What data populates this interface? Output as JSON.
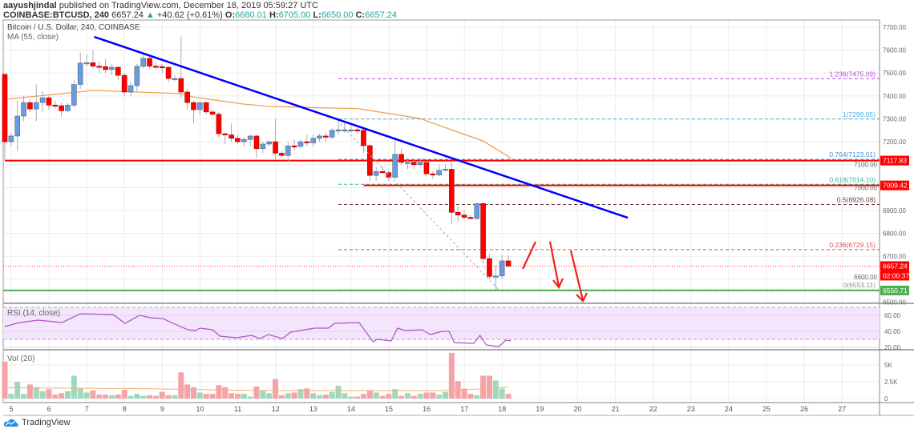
{
  "header": {
    "author": "aayushjindal",
    "published": "published on TradingView.com, December 18, 2019 05:59:27 UTC",
    "symbol": "COINBASE:BTCUSD, 240",
    "last": "6657.24",
    "change": "+40.62 (+0.61%)",
    "o_label": "O:",
    "o": "6680.01",
    "h_label": "H:",
    "h": "6705.00",
    "l_label": "L:",
    "l": "6650.00",
    "c_label": "C:",
    "c": "6657.24"
  },
  "footer": {
    "brand": "TradingView"
  },
  "colors": {
    "up": "#6a9be0",
    "down": "#ff0000",
    "ma": "#f0a050",
    "trend": "#0000ff",
    "rsi": "#b050c8",
    "support": "#4caf50"
  },
  "chart_data": {
    "type": "candlestick",
    "title": "Bitcoin / U.S. Dollar, 240, COINBASE",
    "ma_label": "MA (55, close)",
    "price_ticks": [
      6500,
      6600,
      6700,
      6800,
      6900,
      7000,
      7100,
      7200,
      7300,
      7400,
      7500,
      7600,
      7700
    ],
    "price_tick_labels": [
      "6500.00",
      "6600.00",
      "6700.00",
      "6800.00",
      "6900.00",
      "7000.00",
      "7100.00",
      "7200.00",
      "7300.00",
      "7400.00",
      "7500.00",
      "7600.00",
      "7700.00"
    ],
    "ylim": [
      6480,
      7730
    ],
    "x_labels": [
      "5",
      "6",
      "7",
      "8",
      "9",
      "10",
      "11",
      "12",
      "13",
      "14",
      "15",
      "16",
      "17",
      "18",
      "19",
      "20",
      "21",
      "22",
      "23",
      "24",
      "25",
      "26",
      "27"
    ],
    "ohlc": [
      [
        7494,
        7500,
        7120,
        7200
      ],
      [
        7200,
        7240,
        7180,
        7225
      ],
      [
        7225,
        7380,
        7160,
        7312
      ],
      [
        7312,
        7400,
        7290,
        7371
      ],
      [
        7371,
        7385,
        7330,
        7343
      ],
      [
        7343,
        7450,
        7290,
        7371
      ],
      [
        7371,
        7420,
        7330,
        7392
      ],
      [
        7392,
        7400,
        7340,
        7360
      ],
      [
        7360,
        7380,
        7345,
        7357
      ],
      [
        7357,
        7370,
        7310,
        7335
      ],
      [
        7335,
        7370,
        7330,
        7360
      ],
      [
        7360,
        7470,
        7350,
        7450
      ],
      [
        7450,
        7590,
        7430,
        7543
      ],
      [
        7543,
        7580,
        7530,
        7545
      ],
      [
        7545,
        7600,
        7520,
        7530
      ],
      [
        7530,
        7550,
        7500,
        7528
      ],
      [
        7528,
        7560,
        7500,
        7515
      ],
      [
        7515,
        7540,
        7490,
        7525
      ],
      [
        7525,
        7530,
        7470,
        7490
      ],
      [
        7490,
        7500,
        7400,
        7417
      ],
      [
        7417,
        7460,
        7400,
        7445
      ],
      [
        7445,
        7540,
        7420,
        7529
      ],
      [
        7529,
        7580,
        7520,
        7564
      ],
      [
        7564,
        7570,
        7520,
        7530
      ],
      [
        7530,
        7545,
        7515,
        7528
      ],
      [
        7528,
        7540,
        7500,
        7525
      ],
      [
        7525,
        7530,
        7460,
        7476
      ],
      [
        7476,
        7490,
        7465,
        7476
      ],
      [
        7476,
        7660,
        7390,
        7417
      ],
      [
        7417,
        7430,
        7340,
        7371
      ],
      [
        7371,
        7380,
        7280,
        7340
      ],
      [
        7340,
        7370,
        7320,
        7371
      ],
      [
        7371,
        7375,
        7320,
        7330
      ],
      [
        7330,
        7340,
        7310,
        7320
      ],
      [
        7320,
        7330,
        7220,
        7235
      ],
      [
        7235,
        7240,
        7190,
        7230
      ],
      [
        7230,
        7280,
        7200,
        7215
      ],
      [
        7215,
        7230,
        7190,
        7200
      ],
      [
        7200,
        7220,
        7180,
        7210
      ],
      [
        7210,
        7230,
        7180,
        7225
      ],
      [
        7225,
        7230,
        7130,
        7170
      ],
      [
        7170,
        7200,
        7150,
        7190
      ],
      [
        7190,
        7205,
        7180,
        7200
      ],
      [
        7200,
        7300,
        7120,
        7150
      ],
      [
        7150,
        7160,
        7130,
        7140
      ],
      [
        7140,
        7200,
        7110,
        7182
      ],
      [
        7182,
        7210,
        7160,
        7180
      ],
      [
        7180,
        7210,
        7170,
        7200
      ],
      [
        7200,
        7230,
        7180,
        7195
      ],
      [
        7195,
        7230,
        7180,
        7215
      ],
      [
        7215,
        7235,
        7200,
        7225
      ],
      [
        7225,
        7240,
        7200,
        7220
      ],
      [
        7220,
        7260,
        7210,
        7250
      ],
      [
        7250,
        7300,
        7230,
        7252
      ],
      [
        7252,
        7290,
        7240,
        7252
      ],
      [
        7252,
        7270,
        7240,
        7252
      ],
      [
        7252,
        7260,
        7240,
        7250
      ],
      [
        7250,
        7260,
        7150,
        7183
      ],
      [
        7183,
        7190,
        7030,
        7053
      ],
      [
        7053,
        7090,
        7030,
        7070
      ],
      [
        7070,
        7090,
        7060,
        7065
      ],
      [
        7065,
        7075,
        7030,
        7045
      ],
      [
        7045,
        7220,
        7040,
        7145
      ],
      [
        7145,
        7170,
        7100,
        7110
      ],
      [
        7110,
        7130,
        7080,
        7110
      ],
      [
        7110,
        7120,
        7080,
        7100
      ],
      [
        7100,
        7130,
        7090,
        7110
      ],
      [
        7110,
        7115,
        7050,
        7060
      ],
      [
        7060,
        7070,
        7040,
        7055
      ],
      [
        7055,
        7100,
        7050,
        7075
      ],
      [
        7075,
        7100,
        7070,
        7080
      ],
      [
        7080,
        7110,
        6840,
        6892
      ],
      [
        6892,
        6920,
        6850,
        6880
      ],
      [
        6880,
        6900,
        6860,
        6870
      ],
      [
        6870,
        6880,
        6860,
        6865
      ],
      [
        6865,
        6930,
        6860,
        6930
      ],
      [
        6930,
        6935,
        6670,
        6690
      ],
      [
        6690,
        6710,
        6600,
        6612
      ],
      [
        6612,
        6660,
        6553,
        6614
      ],
      [
        6614,
        6705,
        6600,
        6680
      ],
      [
        6680,
        6705,
        6650,
        6657.24
      ]
    ],
    "ma55": [
      [
        0,
        7385
      ],
      [
        14,
        7424
      ],
      [
        28,
        7410
      ],
      [
        30,
        7395
      ],
      [
        38,
        7364
      ],
      [
        42,
        7354
      ],
      [
        52,
        7347
      ],
      [
        56,
        7345
      ],
      [
        62,
        7319
      ],
      [
        66,
        7301
      ],
      [
        71,
        7252
      ],
      [
        76,
        7203
      ],
      [
        80.5,
        7127
      ]
    ],
    "trendline": [
      [
        14.2,
        7658
      ],
      [
        99,
        6868
      ]
    ],
    "fib_guide": [
      [
        53.3,
        7277
      ],
      [
        78.5,
        6553
      ]
    ],
    "horizontal_levels": [
      {
        "price": 7117.83,
        "label": "7117.83",
        "color": "#ff0000",
        "from_index": 0
      },
      {
        "price": 7009.42,
        "label": "7009.42",
        "color": "#ff0000",
        "from_index": 57
      }
    ],
    "support": {
      "price": 6550.71,
      "label": "6550.71"
    },
    "last_price": {
      "price": 6657.24,
      "label": "6657.24",
      "countdown": "02:00:37"
    },
    "fib_levels": [
      {
        "price": 7475.09,
        "label": "1.236(7475.09)",
        "color": "#b04fd8"
      },
      {
        "price": 7299.05,
        "label": "1(7299.05)",
        "color": "#4fb0e0"
      },
      {
        "price": 7123.01,
        "label": "0.764(7123.01)",
        "color": "#3d8fd8"
      },
      {
        "price": 7014.1,
        "label": "0.618(7014.10)",
        "color": "#2bbf8f"
      },
      {
        "price": 6926.08,
        "label": "0.5(6926.08)",
        "color": "#6b3a3a"
      },
      {
        "price": 6729.15,
        "label": "0.236(6729.15)",
        "color": "#e05050"
      },
      {
        "price": 6553.11,
        "label": "0(6553.11)",
        "color": "#909090"
      }
    ],
    "rsi": {
      "label": "RSI (14, close)",
      "ticks": [
        "20.00",
        "40.00",
        "60.00"
      ],
      "tick_values": [
        20,
        40,
        60
      ],
      "band": [
        30,
        70
      ],
      "points": [
        [
          0,
          46
        ],
        [
          2.4,
          51
        ],
        [
          5.3,
          54
        ],
        [
          9.1,
          51
        ],
        [
          12,
          62
        ],
        [
          17.2,
          61
        ],
        [
          19.1,
          50
        ],
        [
          21.4,
          60
        ],
        [
          23.2,
          57
        ],
        [
          25.1,
          56
        ],
        [
          26.2,
          52
        ],
        [
          29.1,
          42
        ],
        [
          30.3,
          41
        ],
        [
          31,
          44
        ],
        [
          33,
          42
        ],
        [
          34.2,
          34
        ],
        [
          36.8,
          32
        ],
        [
          39.2,
          35
        ],
        [
          40.5,
          31
        ],
        [
          41.9,
          36
        ],
        [
          44.1,
          31
        ],
        [
          45.4,
          39
        ],
        [
          49.2,
          44
        ],
        [
          51.4,
          44
        ],
        [
          52.4,
          50
        ],
        [
          56.3,
          51
        ],
        [
          58.5,
          27
        ],
        [
          59.2,
          30
        ],
        [
          61.4,
          28
        ],
        [
          62.4,
          44
        ],
        [
          63.6,
          41
        ],
        [
          66.3,
          42
        ],
        [
          67.6,
          36
        ],
        [
          69.5,
          40
        ],
        [
          70.6,
          40
        ],
        [
          71.4,
          26
        ],
        [
          74.5,
          25
        ],
        [
          75.5,
          35
        ],
        [
          76.5,
          23
        ],
        [
          78.5,
          21
        ],
        [
          79.6,
          29
        ],
        [
          80.4,
          28
        ]
      ]
    },
    "volume": {
      "label": "Vol (20)",
      "ticks": [
        "0",
        "2.5K",
        "5K"
      ],
      "tick_values": [
        0,
        2500,
        5000
      ],
      "values_k": [
        5.5,
        0.7,
        2.5,
        0.7,
        2.1,
        1.7,
        1.1,
        1.4,
        0.6,
        0.8,
        1.1,
        3.4,
        1.5,
        0.9,
        1.2,
        0.6,
        0.6,
        0.5,
        0.6,
        1.3,
        0.4,
        0.7,
        0.4,
        0.5,
        0.4,
        1.0,
        0.5,
        0.5,
        3.9,
        2.1,
        1.7,
        0.9,
        0.7,
        0.7,
        2.0,
        1.7,
        0.8,
        0.7,
        0.7,
        0.3,
        1.8,
        1.2,
        0.8,
        2.9,
        0.5,
        0.8,
        0.9,
        1.4,
        1.5,
        0.8,
        0.5,
        0.6,
        1.0,
        1.9,
        0.8,
        0.3,
        0.3,
        0.7,
        1.2,
        0.9,
        0.4,
        0.7,
        1.4,
        0.4,
        0.8,
        0.4,
        0.7,
        0.9,
        0.9,
        0.6,
        1.0,
        6.8,
        2.6,
        1.5,
        0.7,
        0.5,
        3.4,
        3.4,
        2.7,
        1.5,
        0.7
      ],
      "ma_k": [
        [
          0,
          1.6
        ],
        [
          20,
          1.5
        ],
        [
          40,
          1.2
        ],
        [
          60,
          1.2
        ],
        [
          70,
          1.2
        ],
        [
          75,
          1.4
        ],
        [
          80,
          1.7
        ]
      ]
    }
  }
}
